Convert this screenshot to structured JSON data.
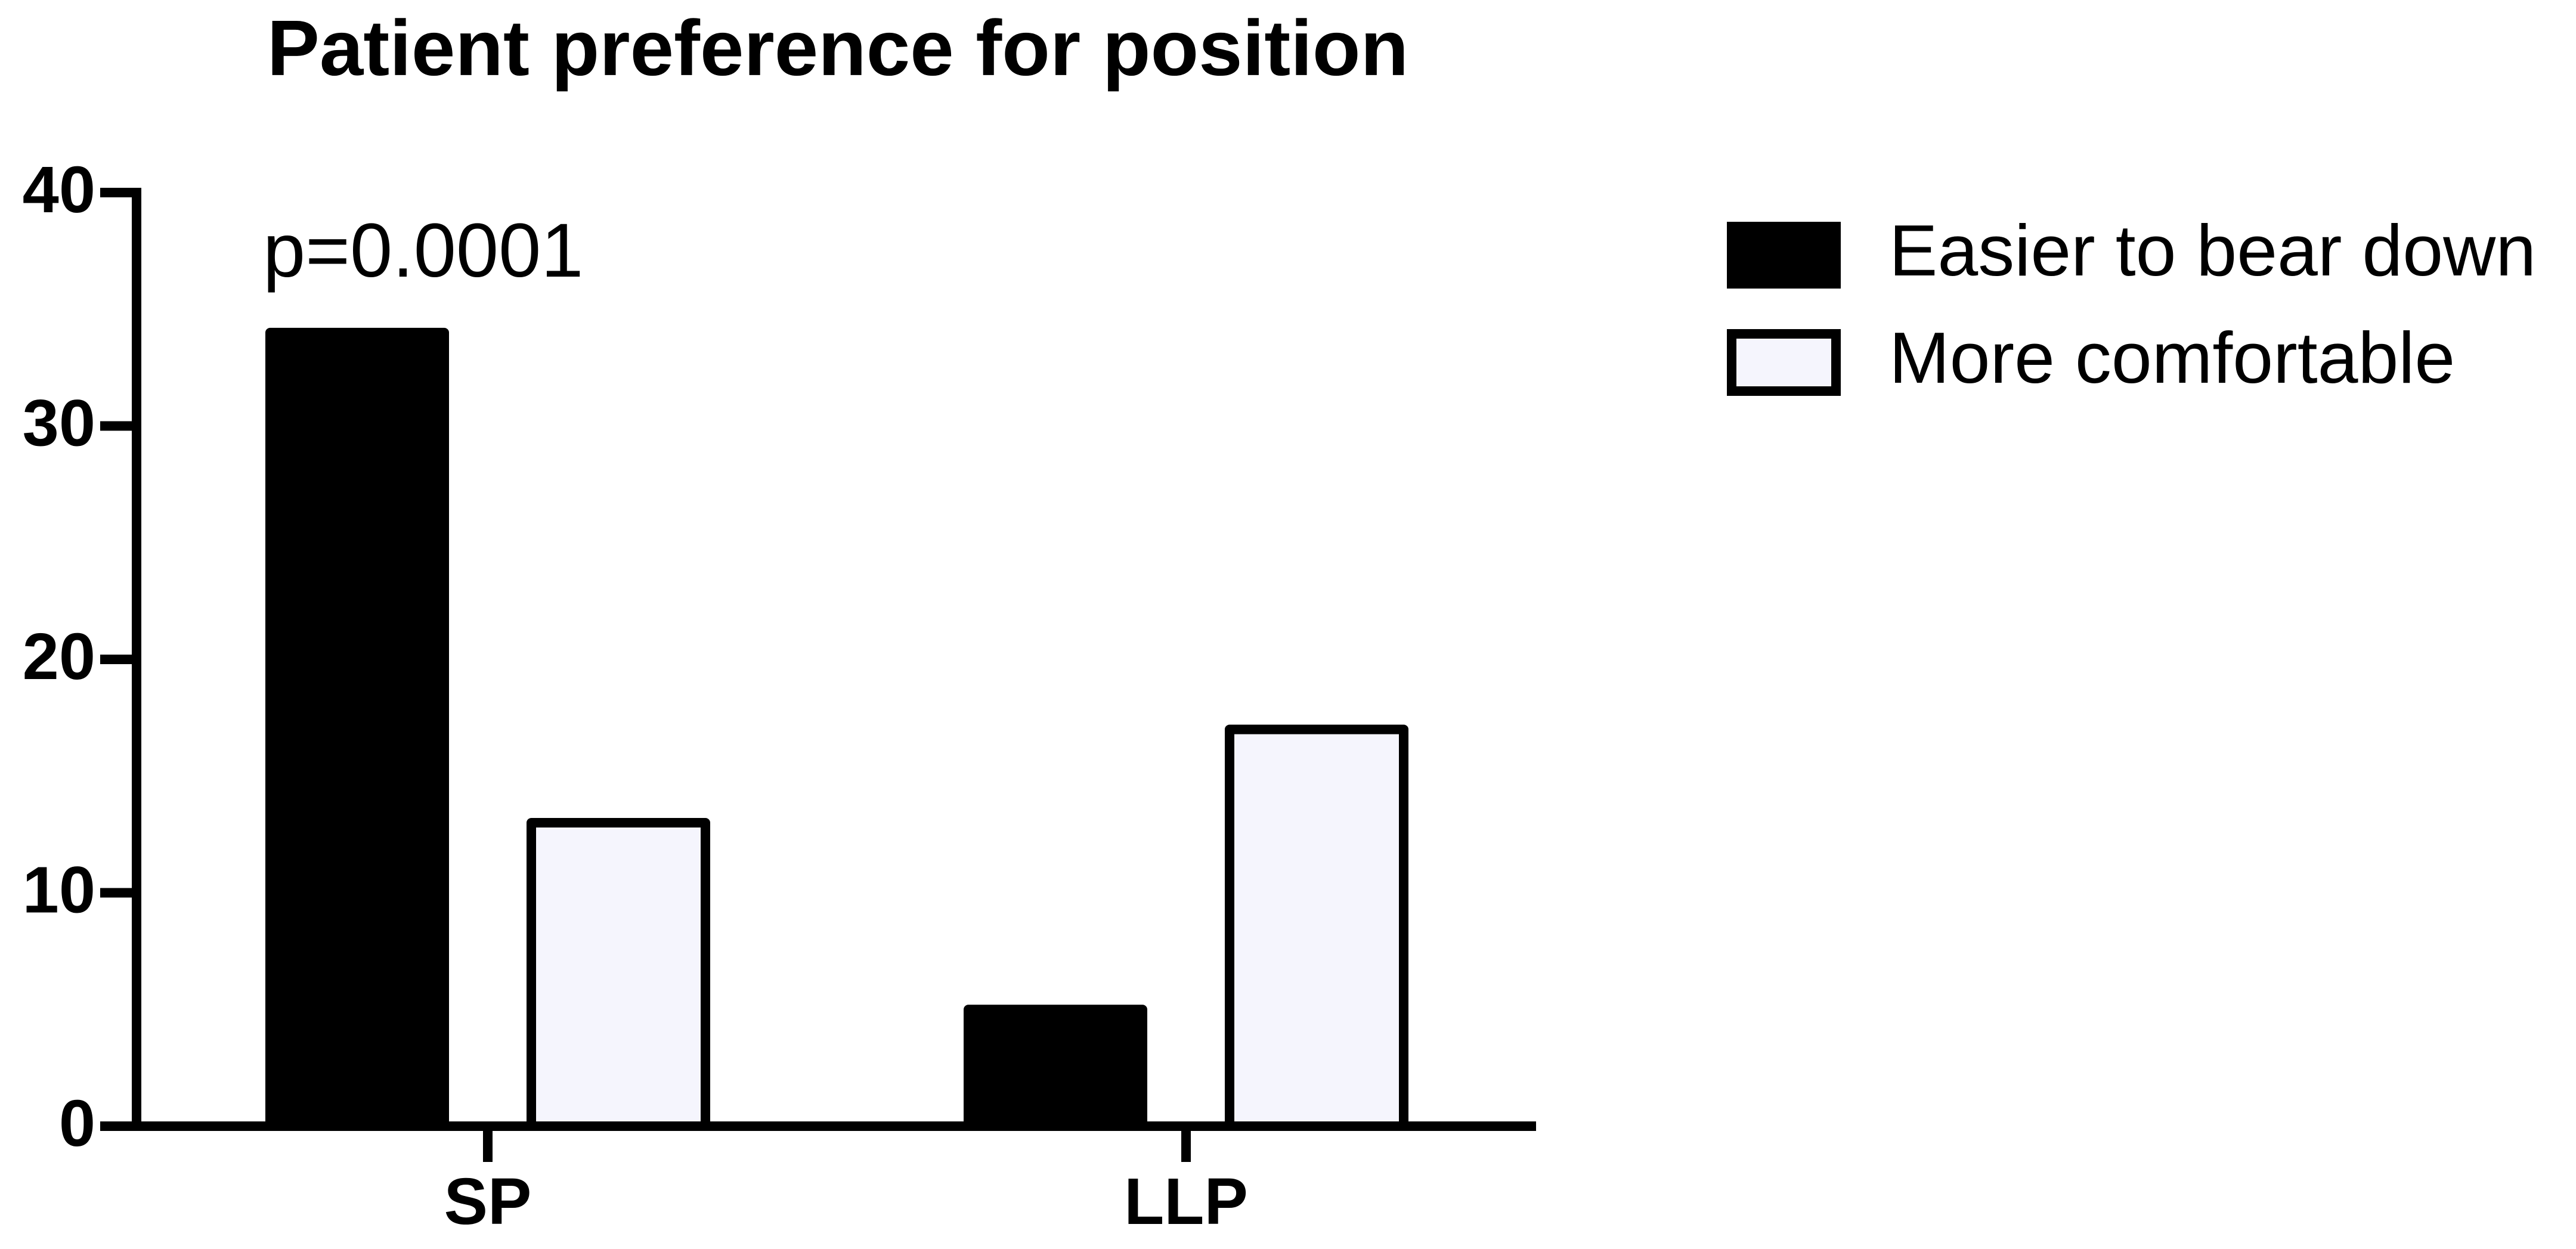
{
  "chart_data": {
    "type": "bar",
    "title": "Patient preference for position",
    "categories": [
      "SP",
      "LLP"
    ],
    "series": [
      {
        "name": "Easier to bear down",
        "color": "#000000",
        "values": [
          34,
          5
        ]
      },
      {
        "name": "More comfortable",
        "color": "#f5f5fd",
        "values": [
          13,
          17
        ]
      }
    ],
    "edgecolor": "#000000",
    "ylim": [
      0,
      40
    ],
    "yticks": [
      0,
      10,
      20,
      30,
      40
    ],
    "annotation": "p=0.0001",
    "legend": "right",
    "grid": false
  }
}
